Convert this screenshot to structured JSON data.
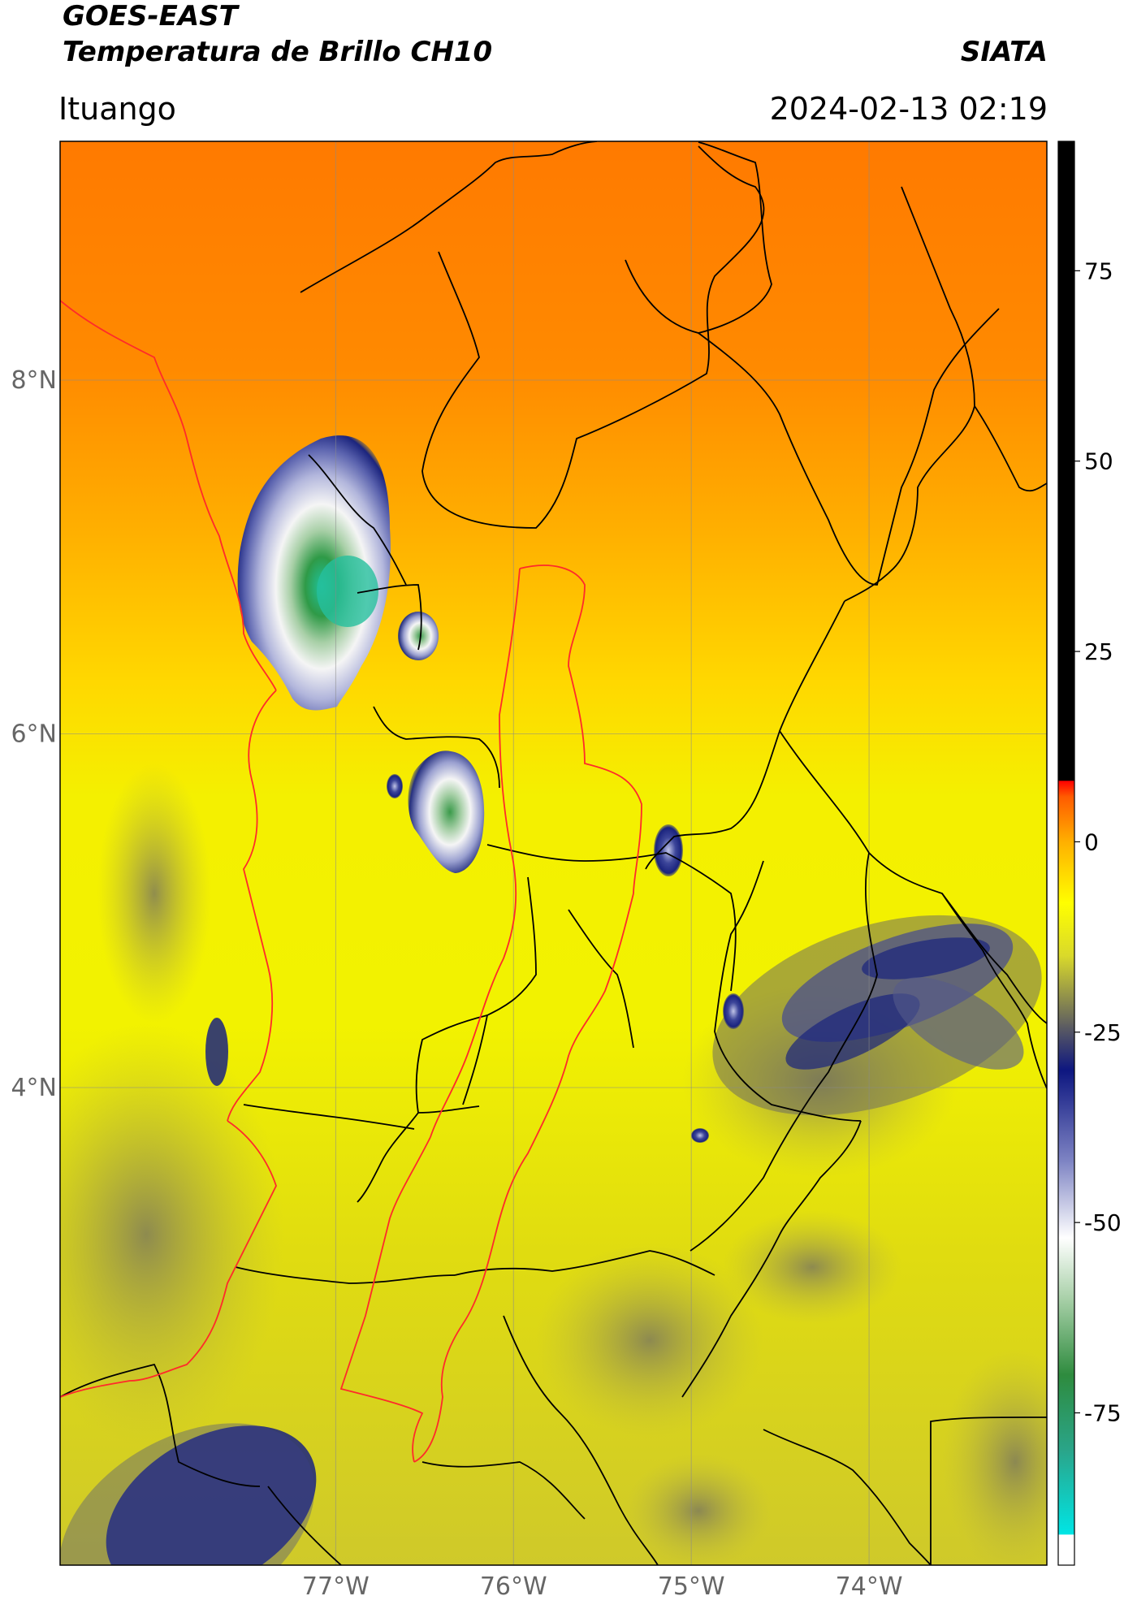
{
  "header": {
    "satellite": "GOES-EAST",
    "product": "Temperatura de Brillo CH10",
    "agency": "SIATA",
    "location": "Ituango",
    "timestamp": "2024-02-13 02:19"
  },
  "map": {
    "extent": {
      "lon": [
        -78.55,
        -73.0
      ],
      "lat": [
        1.3,
        9.35
      ]
    },
    "lat_ticks": [
      {
        "value": 8,
        "label": "8°N"
      },
      {
        "value": 6,
        "label": "6°N"
      },
      {
        "value": 4,
        "label": "4°N"
      }
    ],
    "lon_ticks": [
      {
        "value": -77,
        "label": "77°W"
      },
      {
        "value": -76,
        "label": "76°W"
      },
      {
        "value": -75,
        "label": "75°W"
      },
      {
        "value": -74,
        "label": "74°W"
      }
    ],
    "gridlines": true,
    "colors": {
      "warm": "#ff7f00",
      "mid": "#ffbb00",
      "yellow": "#f2f200",
      "olive": "#c9c92c",
      "grey": "#7a7a58",
      "navy": "#1a237e",
      "lavender": "#9aa0d0",
      "white": "#f5f5f5",
      "green": "#3a9a4a",
      "teal": "#22c8a8",
      "borders_national": "#000000",
      "borders_red": "#ff2a2a"
    },
    "cloud_features": [
      {
        "name": "uraba-convective-cell",
        "lon": -77.0,
        "lat": 7.05,
        "min_temp": -80
      },
      {
        "name": "choco-convective-cell",
        "lon": -76.35,
        "lat": 5.85,
        "min_temp": -70
      },
      {
        "name": "small-cell-east",
        "lon": -75.05,
        "lat": 5.55,
        "min_temp": -35
      },
      {
        "name": "eastern-cloud-band",
        "lon": -74.0,
        "lat": 4.6,
        "min_temp": -35
      },
      {
        "name": "southwest-cloud",
        "lon": -77.8,
        "lat": 1.9,
        "min_temp": -35
      }
    ]
  },
  "colorbar": {
    "min": -95,
    "max": 92,
    "ticks": [
      {
        "value": 75,
        "label": "75"
      },
      {
        "value": 50,
        "label": "50"
      },
      {
        "value": 25,
        "label": "25"
      },
      {
        "value": 0,
        "label": "0"
      },
      {
        "value": -25,
        "label": "-25"
      },
      {
        "value": -50,
        "label": "-50"
      },
      {
        "value": -75,
        "label": "-75"
      }
    ],
    "stops": [
      {
        "value": -95,
        "color": "#ffffff"
      },
      {
        "value": -91,
        "color": "#ffffff"
      },
      {
        "value": -90.9,
        "color": "#00e5e5"
      },
      {
        "value": -80,
        "color": "#2aa58a"
      },
      {
        "value": -70,
        "color": "#2e8b3e"
      },
      {
        "value": -60,
        "color": "#a8d0a8"
      },
      {
        "value": -52,
        "color": "#ffffff"
      },
      {
        "value": -42,
        "color": "#7f85c4"
      },
      {
        "value": -30,
        "color": "#0d1680"
      },
      {
        "value": -24,
        "color": "#606060"
      },
      {
        "value": -15,
        "color": "#d9d92b"
      },
      {
        "value": -8,
        "color": "#ffff00"
      },
      {
        "value": 0,
        "color": "#ffb000"
      },
      {
        "value": 6,
        "color": "#ff5a00"
      },
      {
        "value": 8,
        "color": "#ff0000"
      },
      {
        "value": 8.1,
        "color": "#000000"
      },
      {
        "value": 92,
        "color": "#000000"
      }
    ]
  }
}
